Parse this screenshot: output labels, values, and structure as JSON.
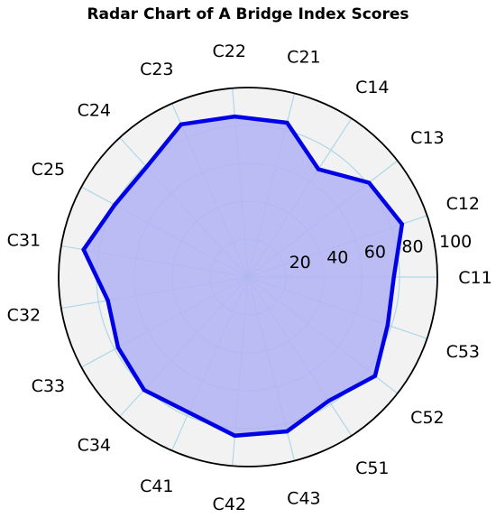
{
  "chart_data": {
    "type": "radar",
    "title": "Radar Chart of A Bridge Index Scores",
    "categories": [
      "C11",
      "C12",
      "C13",
      "C14",
      "C21",
      "C22",
      "C23",
      "C24",
      "C25",
      "C31",
      "C32",
      "C33",
      "C34",
      "C41",
      "C42",
      "C43",
      "C51",
      "C52",
      "C53"
    ],
    "series": [
      {
        "values": [
          77,
          86,
          81,
          68,
          84,
          85,
          88,
          79,
          80,
          88,
          75,
          78,
          81,
          78,
          84,
          84,
          78,
          85,
          78
        ],
        "color": "#0000e6",
        "fill": "#b3b3f5"
      }
    ],
    "rlim": [
      0,
      100
    ],
    "rticks": [
      20,
      40,
      60,
      80,
      100
    ],
    "grid": true,
    "gridColor": "#add8e6",
    "backgroundColor": "#f2f2f2"
  }
}
